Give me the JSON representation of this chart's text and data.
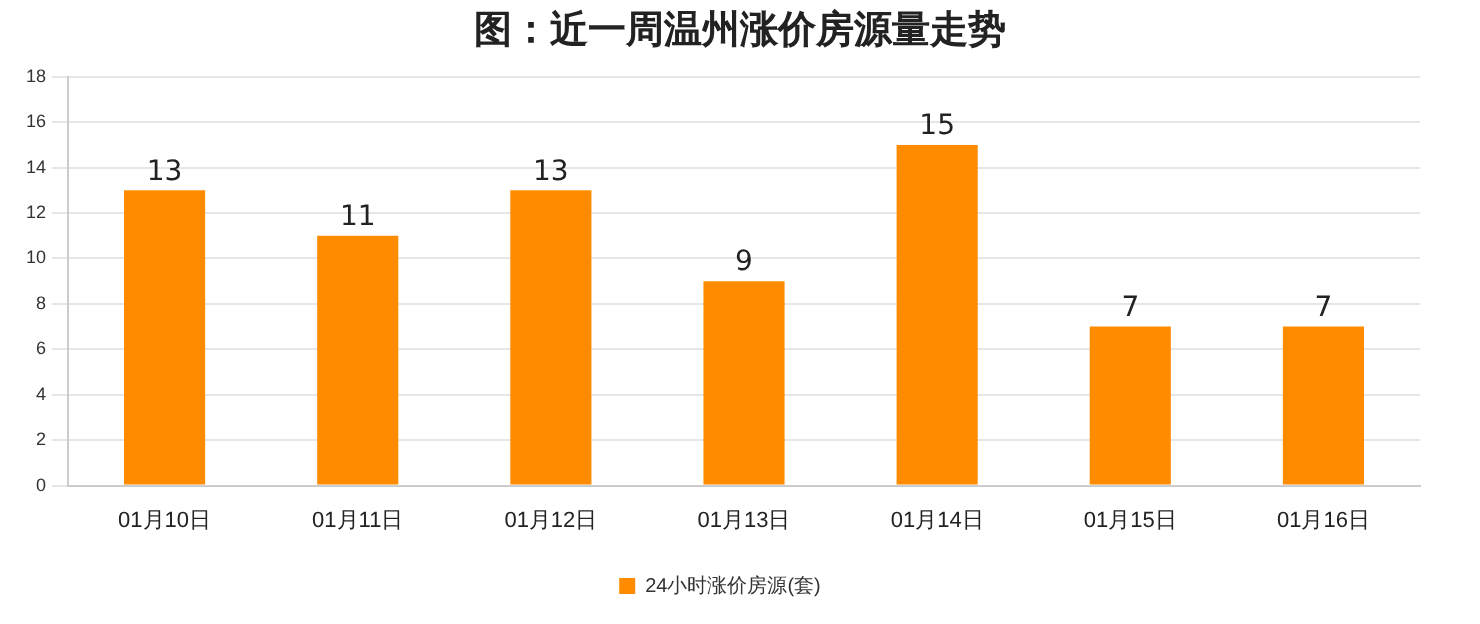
{
  "chart_data": {
    "type": "bar",
    "title": "图：近一周温州涨价房源量走势",
    "categories": [
      "01月10日",
      "01月11日",
      "01月12日",
      "01月13日",
      "01月14日",
      "01月15日",
      "01月16日"
    ],
    "series": [
      {
        "name": "24小时涨价房源(套)",
        "color": "#ff8c00",
        "values": [
          13,
          11,
          13,
          9,
          15,
          7,
          7
        ]
      }
    ],
    "ylim": [
      0,
      18
    ],
    "yticks": [
      0,
      2,
      4,
      6,
      8,
      10,
      12,
      14,
      16,
      18
    ],
    "grid": "y",
    "legend": "bottom",
    "data_labels": true
  }
}
